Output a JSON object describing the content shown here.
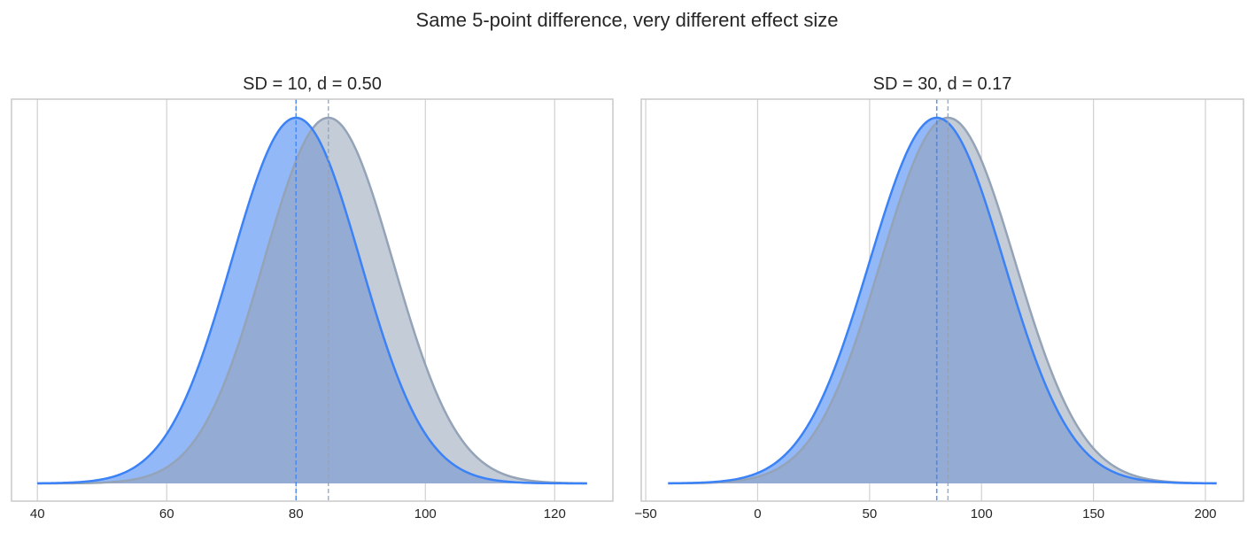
{
  "figure": {
    "title": "Same 5-point difference, very different effect size"
  },
  "colors": {
    "group_a_line": "#3b82f6",
    "group_a_fill": "#93b8f7",
    "group_b_line": "#94a3b8",
    "group_b_fill": "#c3ccd7",
    "overlap_fill": "#94abd4",
    "grid": "#d0d0d0",
    "frame": "#c8c8c8"
  },
  "chart_data": [
    {
      "type": "area",
      "title": "SD = 10,   d = 0.50",
      "xlabel": "",
      "ylabel": "",
      "grid": "vertical",
      "xlim": [
        36,
        129
      ],
      "xticks": [
        40,
        60,
        80,
        100,
        120
      ],
      "x_range": [
        40,
        125
      ],
      "series": [
        {
          "mean": 80,
          "sd": 10
        },
        {
          "mean": 85,
          "sd": 10
        }
      ],
      "mean_lines": [
        80,
        85
      ]
    },
    {
      "type": "area",
      "title": "SD = 30,   d = 0.17",
      "xlabel": "",
      "ylabel": "",
      "grid": "vertical",
      "xlim": [
        -52,
        217
      ],
      "xticks": [
        -50,
        0,
        50,
        100,
        150,
        200
      ],
      "xtick_labels": [
        "−50",
        "0",
        "50",
        "100",
        "150",
        "200"
      ],
      "x_range": [
        -40,
        205
      ],
      "series": [
        {
          "mean": 80,
          "sd": 30
        },
        {
          "mean": 85,
          "sd": 30
        }
      ],
      "mean_lines": [
        80,
        85
      ]
    }
  ]
}
